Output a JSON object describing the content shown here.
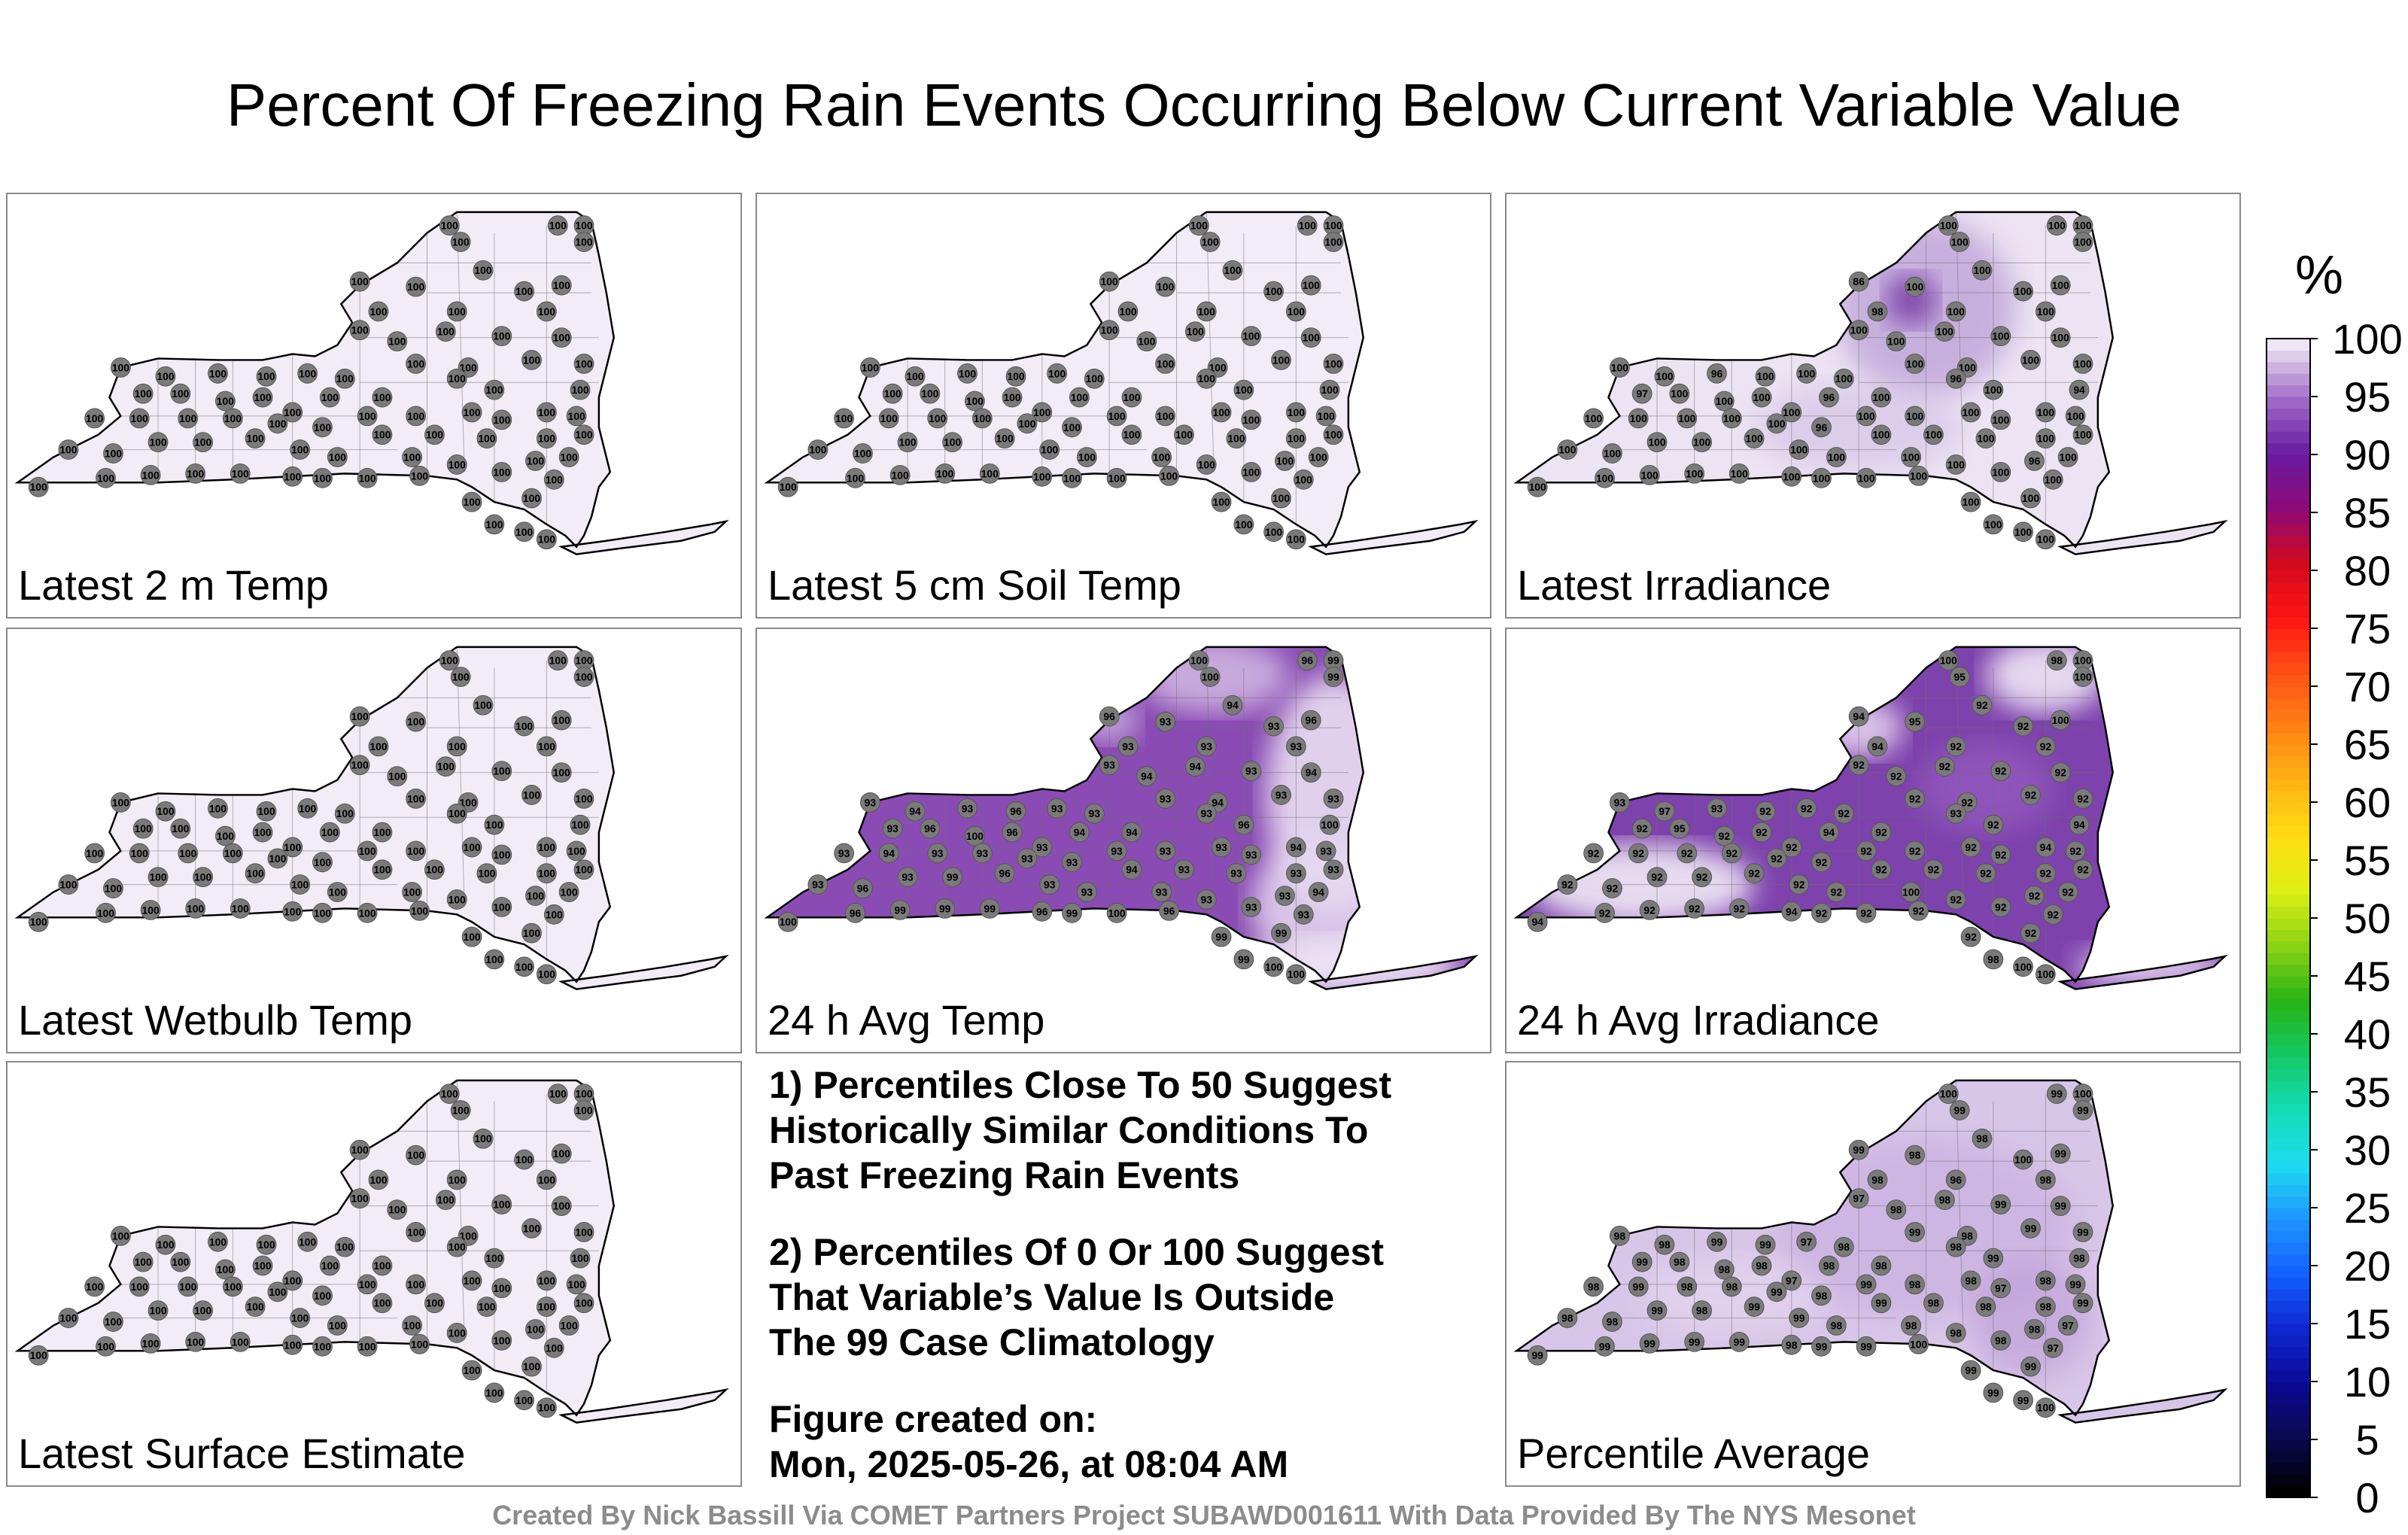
{
  "title": "Percent Of Freezing Rain Events Occurring Below Current Variable Value",
  "panels": [
    {
      "label": "Latest 2 m Temp",
      "shade": "#f1ecf6",
      "overlay": "none",
      "values": [
        "100",
        "100",
        "100",
        "100",
        "100",
        "100",
        "100",
        "100",
        "100",
        "100",
        "100",
        "100",
        "100",
        "100",
        "100",
        "100",
        "100",
        "100",
        "100",
        "100",
        "100",
        "100",
        "100",
        "100",
        "100",
        "100",
        "100",
        "100",
        "100",
        "100",
        "100",
        "100",
        "100",
        "100",
        "100",
        "100",
        "100",
        "100",
        "100",
        "100",
        "100",
        "100",
        "100",
        "100",
        "100",
        "100",
        "100",
        "100",
        "100",
        "100",
        "100",
        "100",
        "100",
        "100",
        "100",
        "100",
        "100",
        "100",
        "100",
        "100",
        "100",
        "100",
        "100",
        "100",
        "100",
        "100",
        "100",
        "100",
        "100",
        "100",
        "100",
        "100",
        "100",
        "100",
        "100",
        "100",
        "100",
        "100",
        "100",
        "100",
        "100",
        "100"
      ]
    },
    {
      "label": "Latest 5 cm Soil Temp",
      "shade": "#f1ecf6",
      "overlay": "none",
      "values": [
        "100",
        "100",
        "100",
        "100",
        "100",
        "100",
        "100",
        "100",
        "100",
        "100",
        "100",
        "100",
        "100",
        "100",
        "100",
        "100",
        "100",
        "100",
        "100",
        "100",
        "100",
        "100",
        "100",
        "100",
        "100",
        "100",
        "100",
        "100",
        "100",
        "100",
        "100",
        "100",
        "100",
        "100",
        "100",
        "100",
        "100",
        "100",
        "100",
        "100",
        "100",
        "100",
        "100",
        "100",
        "100",
        "100",
        "100",
        "100",
        "100",
        "100",
        "100",
        "100",
        "100",
        "100",
        "100",
        "100",
        "100",
        "100",
        "100",
        "100",
        "100",
        "100",
        "100",
        "100",
        "100",
        "100",
        "100",
        "100",
        "100",
        "100",
        "100",
        "100",
        "100",
        "100",
        "100",
        "100",
        "100",
        "100",
        "100",
        "100",
        "100",
        "100"
      ]
    },
    {
      "label": "Latest Irradiance",
      "shade": "#ece4f3",
      "overlay": "irr",
      "values": [
        "100",
        "100",
        "100",
        "100",
        "100",
        "86",
        "100",
        "100",
        "100",
        "100",
        "100",
        "100",
        "98",
        "100",
        "100",
        "100",
        "100",
        "100",
        "100",
        "100",
        "100",
        "100",
        "94",
        "100",
        "100",
        "96",
        "100",
        "100",
        "100",
        "100",
        "96",
        "100",
        "100",
        "100",
        "100",
        "97",
        "100",
        "100",
        "100",
        "96",
        "100",
        "100",
        "100",
        "100",
        "100",
        "100",
        "100",
        "100",
        "100",
        "100",
        "100",
        "96",
        "100",
        "100",
        "100",
        "96",
        "100",
        "100",
        "100",
        "100",
        "100",
        "100",
        "100",
        "100",
        "100",
        "100",
        "100",
        "100",
        "100",
        "100",
        "100",
        "100",
        "100",
        "100",
        "100",
        "100",
        "100",
        "100",
        "100",
        "100",
        "100",
        "100"
      ]
    },
    {
      "label": "Latest Wetbulb Temp",
      "shade": "#f1ecf6",
      "overlay": "none",
      "values": [
        "100",
        "100",
        "100",
        "100",
        "100",
        "100",
        "100",
        "100",
        "100",
        "100",
        "100",
        "100",
        "100",
        "100",
        "100",
        "100",
        "100",
        "100",
        "100",
        "100",
        "100",
        "100",
        "100",
        "100",
        "100",
        "100",
        "100",
        "100",
        "100",
        "100",
        "100",
        "100",
        "100",
        "100",
        "100",
        "100",
        "100",
        "100",
        "100",
        "100",
        "100",
        "100",
        "100",
        "100",
        "100",
        "100",
        "100",
        "100",
        "100",
        "100",
        "100",
        "100",
        "100",
        "100",
        "100",
        "100",
        "100",
        "100",
        "100",
        "100",
        "100",
        "100",
        "100",
        "100",
        "100",
        "100",
        "100",
        "100",
        "100",
        "100",
        "100",
        "100",
        "100",
        "100",
        "100",
        "100",
        "100",
        "100",
        "100",
        "100",
        "100",
        "100"
      ]
    },
    {
      "label": "24 h Avg Temp",
      "shade": "#8a4cb4",
      "overlay": "avgtemp",
      "values": [
        "100",
        "99",
        "96",
        "99",
        "100",
        "96",
        "93",
        "94",
        "96",
        "93",
        "93",
        "93",
        "93",
        "94",
        "93",
        "94",
        "93",
        "93",
        "94",
        "93",
        "94",
        "93",
        "100",
        "93",
        "94",
        "93",
        "96",
        "93",
        "93",
        "94",
        "93",
        "96",
        "94",
        "93",
        "96",
        "93",
        "100",
        "96",
        "93",
        "94",
        "93",
        "93",
        "93",
        "93",
        "93",
        "93",
        "93",
        "94",
        "93",
        "93",
        "93",
        "93",
        "94",
        "93",
        "93",
        "93",
        "94",
        "93",
        "96",
        "93",
        "99",
        "96",
        "93",
        "93",
        "93",
        "93",
        "93",
        "93",
        "96",
        "99",
        "99",
        "99",
        "96",
        "99",
        "100",
        "96",
        "99",
        "99",
        "99",
        "100",
        "100",
        "100"
      ]
    },
    {
      "label": "24 h Avg Irradiance",
      "shade": "#7e42ad",
      "overlay": "avgirr",
      "values": [
        "100",
        "100",
        "98",
        "100",
        "95",
        "94",
        "95",
        "92",
        "100",
        "92",
        "92",
        "92",
        "94",
        "92",
        "92",
        "92",
        "92",
        "92",
        "92",
        "92",
        "92",
        "92",
        "94",
        "93",
        "97",
        "93",
        "92",
        "92",
        "92",
        "92",
        "93",
        "92",
        "94",
        "92",
        "95",
        "92",
        "92",
        "92",
        "92",
        "94",
        "92",
        "92",
        "92",
        "92",
        "92",
        "92",
        "92",
        "92",
        "92",
        "92",
        "92",
        "92",
        "92",
        "92",
        "92",
        "92",
        "92",
        "92",
        "92",
        "92",
        "92",
        "92",
        "92",
        "92",
        "100",
        "92",
        "92",
        "92",
        "92",
        "92",
        "92",
        "92",
        "94",
        "92",
        "92",
        "92",
        "92",
        "92",
        "98",
        "100",
        "100",
        "94"
      ]
    },
    {
      "label": "Latest Surface Estimate",
      "shade": "#f1ecf6",
      "overlay": "none",
      "values": [
        "100",
        "100",
        "100",
        "100",
        "100",
        "100",
        "100",
        "100",
        "100",
        "100",
        "100",
        "100",
        "100",
        "100",
        "100",
        "100",
        "100",
        "100",
        "100",
        "100",
        "100",
        "100",
        "100",
        "100",
        "100",
        "100",
        "100",
        "100",
        "100",
        "100",
        "100",
        "100",
        "100",
        "100",
        "100",
        "100",
        "100",
        "100",
        "100",
        "100",
        "100",
        "100",
        "100",
        "100",
        "100",
        "100",
        "100",
        "100",
        "100",
        "100",
        "100",
        "100",
        "100",
        "100",
        "100",
        "100",
        "100",
        "100",
        "100",
        "100",
        "100",
        "100",
        "100",
        "100",
        "100",
        "100",
        "100",
        "100",
        "100",
        "100",
        "100",
        "100",
        "100",
        "100",
        "100",
        "100",
        "100",
        "100",
        "100",
        "100",
        "100",
        "100"
      ]
    },
    {
      "label": "Percentile Average",
      "shade": "#d8c6e8",
      "overlay": "pavg",
      "values": [
        "100",
        "100",
        "99",
        "99",
        "99",
        "99",
        "98",
        "98",
        "99",
        "100",
        "98",
        "96",
        "98",
        "98",
        "99",
        "99",
        "99",
        "97",
        "98",
        "99",
        "98",
        "99",
        "98",
        "98",
        "98",
        "99",
        "99",
        "97",
        "98",
        "98",
        "98",
        "99",
        "98",
        "99",
        "98",
        "99",
        "98",
        "98",
        "97",
        "98",
        "99",
        "98",
        "98",
        "97",
        "98",
        "99",
        "98",
        "99",
        "98",
        "98",
        "99",
        "98",
        "99",
        "98",
        "98",
        "98",
        "97",
        "98",
        "98",
        "99",
        "98",
        "99",
        "99",
        "98",
        "98",
        "98",
        "98",
        "97",
        "99",
        "99",
        "99",
        "99",
        "98",
        "99",
        "99",
        "100",
        "99",
        "99",
        "99",
        "99",
        "100",
        "99"
      ]
    }
  ],
  "notes": [
    [
      "1) Percentiles Close To 50 Suggest",
      "Historically Similar Conditions To",
      "Past Freezing Rain Events"
    ],
    [
      "2) Percentiles Of 0 Or 100 Suggest",
      "That Variable’s Value Is Outside",
      "The 99 Case Climatology"
    ],
    [
      "Figure created on:",
      "Mon, 2025-05-26, at 08:04 AM"
    ]
  ],
  "colorbar": {
    "unit": "%",
    "ticks": [
      "0",
      "5",
      "10",
      "15",
      "20",
      "25",
      "30",
      "35",
      "40",
      "45",
      "50",
      "55",
      "60",
      "65",
      "70",
      "75",
      "80",
      "85",
      "90",
      "95",
      "100"
    ],
    "colors": [
      "#000000",
      "#0a0a50",
      "#0a0a96",
      "#0f28d2",
      "#1460ff",
      "#1e96ff",
      "#1edcf0",
      "#14dcb4",
      "#14c864",
      "#28b414",
      "#8cd214",
      "#dcf014",
      "#ffdc14",
      "#ffb414",
      "#ff8214",
      "#ff5014",
      "#ff1414",
      "#d20a1e",
      "#8c0a78",
      "#6a1aa0",
      "#a06ac8",
      "#ede6f4"
    ]
  },
  "credit": "Created By Nick Bassill Via COMET Partners Project SUBAWD001611 With Data Provided By The NYS Mesonet"
}
